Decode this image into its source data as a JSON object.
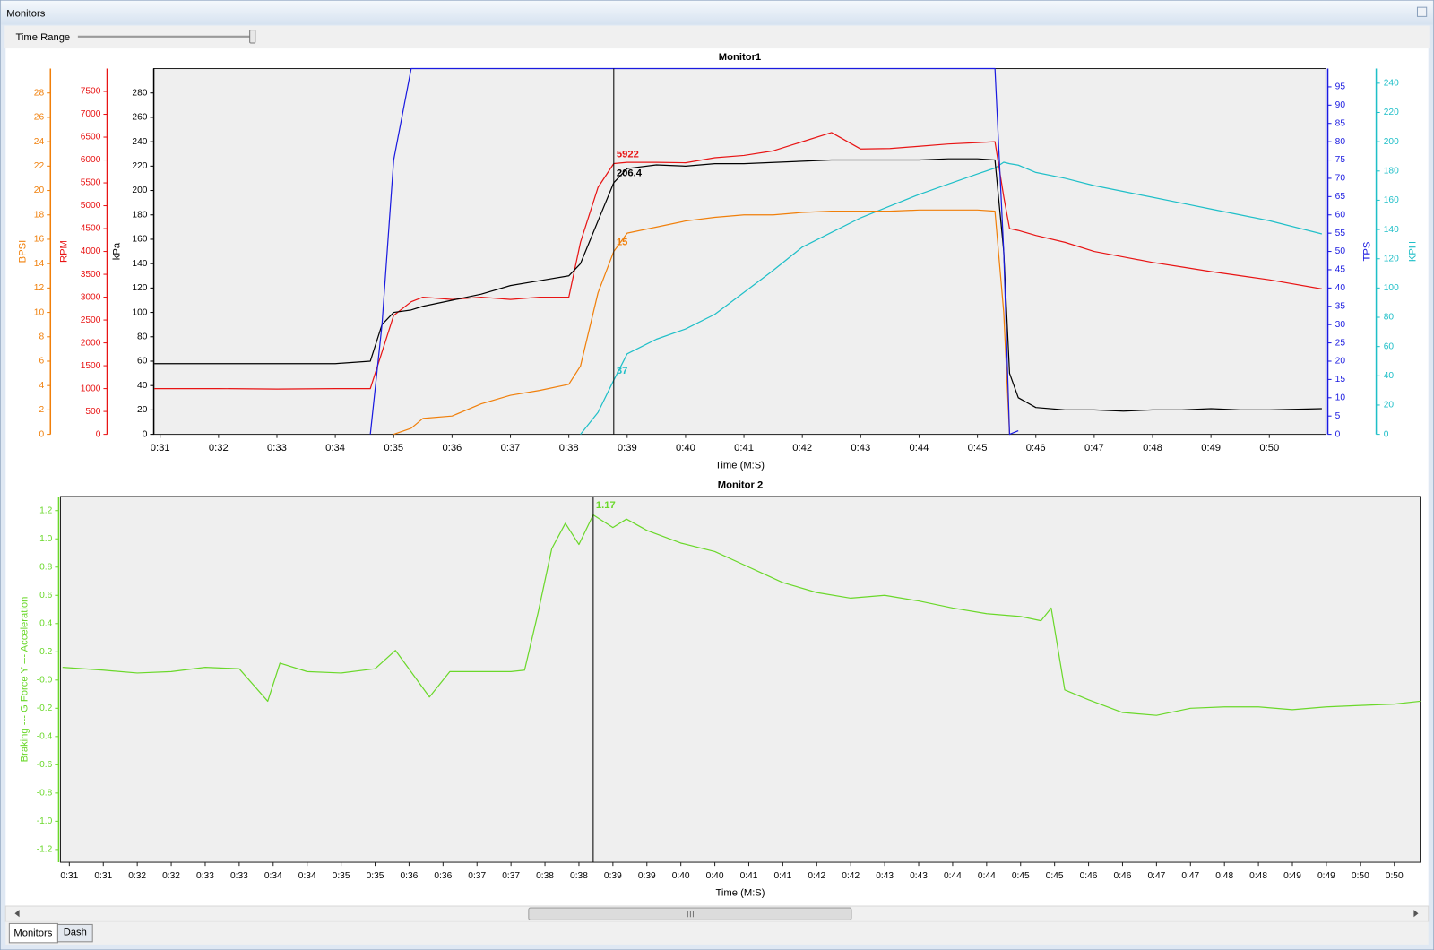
{
  "window": {
    "title": "Monitors"
  },
  "toolbar": {
    "time_range_label": "Time Range"
  },
  "tabs": [
    "Monitors",
    "Dash"
  ],
  "chart_data": [
    {
      "type": "line",
      "title": "Monitor1",
      "x_label": "Time (M:S)",
      "xlim": [
        30.89,
        50.97
      ],
      "xticks": [
        {
          "value": 31,
          "label": "0:31"
        },
        {
          "value": 32,
          "label": "0:32"
        },
        {
          "value": 33,
          "label": "0:33"
        },
        {
          "value": 34,
          "label": "0:34"
        },
        {
          "value": 35,
          "label": "0:35"
        },
        {
          "value": 36,
          "label": "0:36"
        },
        {
          "value": 37,
          "label": "0:37"
        },
        {
          "value": 38,
          "label": "0:38"
        },
        {
          "value": 39,
          "label": "0:39"
        },
        {
          "value": 40,
          "label": "0:40"
        },
        {
          "value": 41,
          "label": "0:41"
        },
        {
          "value": 42,
          "label": "0:42"
        },
        {
          "value": 43,
          "label": "0:43"
        },
        {
          "value": 44,
          "label": "0:44"
        },
        {
          "value": 45,
          "label": "0:45"
        },
        {
          "value": 46,
          "label": "0:46"
        },
        {
          "value": 47,
          "label": "0:47"
        },
        {
          "value": 48,
          "label": "0:48"
        },
        {
          "value": 49,
          "label": "0:49"
        },
        {
          "value": 50,
          "label": "0:50"
        }
      ],
      "grid": false,
      "cursor": 38.77,
      "axes": [
        {
          "label": "BPSI",
          "side": "left",
          "color": "#f07f0a",
          "lim": [
            0,
            30
          ],
          "ticks": [
            0,
            2,
            4,
            6,
            8,
            10,
            12,
            14,
            16,
            18,
            20,
            22,
            24,
            26,
            28
          ]
        },
        {
          "label": "RPM",
          "side": "left",
          "color": "#e81414",
          "lim": [
            0,
            8000
          ],
          "ticks": [
            0,
            500,
            1000,
            1500,
            2000,
            2500,
            3000,
            3500,
            4000,
            4500,
            5000,
            5500,
            6000,
            6500,
            7000,
            7500
          ]
        },
        {
          "label": "kPa",
          "side": "left",
          "color": "#000000",
          "lim": [
            0,
            300
          ],
          "ticks": [
            0,
            20,
            40,
            60,
            80,
            100,
            120,
            140,
            160,
            180,
            200,
            220,
            240,
            260,
            280
          ]
        },
        {
          "label": "TPS",
          "side": "right",
          "color": "#1a1ae0",
          "lim": [
            0,
            100
          ],
          "ticks": [
            0,
            5,
            10,
            15,
            20,
            25,
            30,
            35,
            40,
            45,
            50,
            55,
            60,
            65,
            70,
            75,
            80,
            85,
            90,
            95
          ]
        },
        {
          "label": "KPH",
          "side": "right",
          "color": "#1fbfc8",
          "lim": [
            0,
            250
          ],
          "ticks": [
            0,
            20,
            40,
            60,
            80,
            100,
            120,
            140,
            160,
            180,
            200,
            220,
            240
          ]
        }
      ],
      "x": [
        30.9,
        32,
        33,
        34,
        34.6,
        34.8,
        35,
        35.3,
        35.5,
        36,
        36.5,
        37,
        37.5,
        38,
        38.2,
        38.5,
        38.77,
        39,
        39.5,
        40,
        40.5,
        41,
        41.5,
        42,
        42.5,
        43,
        43.5,
        44,
        44.5,
        45,
        45.3,
        45.45,
        45.55,
        45.7,
        46,
        46.5,
        47,
        47.5,
        48,
        48.5,
        49,
        49.5,
        50,
        50.9
      ],
      "series": [
        {
          "axis": 4,
          "readout": true,
          "values": [
            null,
            null,
            null,
            null,
            null,
            null,
            null,
            null,
            null,
            null,
            null,
            null,
            null,
            null,
            0,
            15,
            37,
            55,
            65,
            72,
            82,
            97,
            112,
            128,
            138,
            148,
            156,
            164,
            171,
            178,
            182,
            186,
            185,
            184,
            179,
            175,
            170,
            166,
            162,
            158,
            154,
            150,
            146,
            137
          ]
        },
        {
          "axis": 0,
          "readout": true,
          "values": [
            null,
            null,
            null,
            null,
            null,
            null,
            0,
            0.5,
            1.3,
            1.5,
            2.5,
            3.2,
            3.6,
            4.1,
            5.6,
            11.6,
            15,
            16.5,
            17,
            17.5,
            17.8,
            18,
            18,
            18.2,
            18.3,
            18.3,
            18.3,
            18.4,
            18.4,
            18.4,
            18.3,
            10,
            0,
            null,
            null,
            null,
            null,
            null,
            null,
            null,
            null,
            null,
            null,
            null
          ]
        },
        {
          "axis": 1,
          "readout": true,
          "values": [
            1000,
            1000,
            990,
            1000,
            1000,
            1800,
            2600,
            2900,
            3000,
            2950,
            3000,
            2950,
            3000,
            3000,
            4200,
            5400,
            5922,
            5950,
            5950,
            5940,
            6050,
            6100,
            6200,
            6400,
            6600,
            6240,
            6250,
            6300,
            6350,
            6380,
            6400,
            5200,
            4500,
            4460,
            4350,
            4200,
            4000,
            3880,
            3760,
            3660,
            3560,
            3470,
            3380,
            3180
          ]
        },
        {
          "axis": 2,
          "readout": true,
          "values": [
            58,
            58,
            58,
            58,
            60,
            90,
            100,
            102,
            105,
            110,
            115,
            122,
            126,
            130,
            140,
            175,
            206.4,
            218,
            221,
            220,
            222,
            222,
            223,
            224,
            225,
            225,
            225,
            225,
            226,
            226,
            225,
            150,
            50,
            30,
            22,
            20,
            20,
            19,
            20,
            20,
            21,
            20,
            20,
            21
          ]
        },
        {
          "axis": 3,
          "readout": false,
          "values": [
            null,
            null,
            null,
            null,
            0,
            30,
            75,
            100,
            100,
            100,
            100,
            100,
            100,
            100,
            100,
            100,
            100,
            100,
            100,
            100,
            100,
            100,
            100,
            100,
            100,
            100,
            100,
            100,
            100,
            100,
            100,
            50,
            0,
            1,
            null,
            null,
            null,
            null,
            null,
            null,
            null,
            null,
            null,
            null
          ]
        }
      ]
    },
    {
      "type": "line",
      "title": "Monitor 2",
      "x_label": "Time (M:S)",
      "xlim": [
        30.87,
        50.88
      ],
      "xticks": [
        {
          "value": 31,
          "label": "0:31"
        },
        {
          "value": 31.5,
          "label": "0:31"
        },
        {
          "value": 32,
          "label": "0:32"
        },
        {
          "value": 32.5,
          "label": "0:32"
        },
        {
          "value": 33,
          "label": "0:33"
        },
        {
          "value": 33.5,
          "label": "0:33"
        },
        {
          "value": 34,
          "label": "0:34"
        },
        {
          "value": 34.5,
          "label": "0:34"
        },
        {
          "value": 35,
          "label": "0:35"
        },
        {
          "value": 35.5,
          "label": "0:35"
        },
        {
          "value": 36,
          "label": "0:36"
        },
        {
          "value": 36.5,
          "label": "0:36"
        },
        {
          "value": 37,
          "label": "0:37"
        },
        {
          "value": 37.5,
          "label": "0:37"
        },
        {
          "value": 38,
          "label": "0:38"
        },
        {
          "value": 38.5,
          "label": "0:38"
        },
        {
          "value": 39,
          "label": "0:39"
        },
        {
          "value": 39.5,
          "label": "0:39"
        },
        {
          "value": 40,
          "label": "0:40"
        },
        {
          "value": 40.5,
          "label": "0:40"
        },
        {
          "value": 41,
          "label": "0:41"
        },
        {
          "value": 41.5,
          "label": "0:41"
        },
        {
          "value": 42,
          "label": "0:42"
        },
        {
          "value": 42.5,
          "label": "0:42"
        },
        {
          "value": 43,
          "label": "0:43"
        },
        {
          "value": 43.5,
          "label": "0:43"
        },
        {
          "value": 44,
          "label": "0:44"
        },
        {
          "value": 44.5,
          "label": "0:44"
        },
        {
          "value": 45,
          "label": "0:45"
        },
        {
          "value": 45.5,
          "label": "0:45"
        },
        {
          "value": 46,
          "label": "0:46"
        },
        {
          "value": 46.5,
          "label": "0:46"
        },
        {
          "value": 47,
          "label": "0:47"
        },
        {
          "value": 47.5,
          "label": "0:47"
        },
        {
          "value": 48,
          "label": "0:48"
        },
        {
          "value": 48.5,
          "label": "0:48"
        },
        {
          "value": 49,
          "label": "0:49"
        },
        {
          "value": 49.5,
          "label": "0:49"
        },
        {
          "value": 50,
          "label": "0:50"
        },
        {
          "value": 50.5,
          "label": "0:50"
        }
      ],
      "grid": false,
      "cursor": 38.71,
      "axes": [
        {
          "label": "Braking --- G Force Y --- Acceleration",
          "side": "left",
          "color": "#6ad82a",
          "lim": [
            -1.29,
            1.3
          ],
          "ticks": [
            1.2,
            {
              "value": 1,
              "label": "1.0"
            },
            0.8,
            0.6,
            0.4,
            0.2,
            {
              "value": 0,
              "label": "-0.0"
            },
            -0.2,
            -0.4,
            -0.6,
            -0.8,
            {
              "value": -1,
              "label": "-1.0"
            },
            -1.2
          ]
        }
      ],
      "x": [
        30.9,
        31.5,
        32,
        32.5,
        33,
        33.5,
        33.92,
        34.1,
        34.5,
        35,
        35.5,
        35.8,
        36.3,
        36.6,
        37,
        37.5,
        37.7,
        37.9,
        38.1,
        38.3,
        38.5,
        38.71,
        39,
        39.2,
        39.5,
        40,
        40.5,
        41,
        41.5,
        42,
        42.5,
        43,
        43.5,
        44,
        44.5,
        45,
        45.3,
        45.45,
        45.65,
        46,
        46.5,
        47,
        47.5,
        48,
        48.5,
        49,
        49.5,
        50,
        50.5,
        50.88
      ],
      "series": [
        {
          "axis": 0,
          "readout": true,
          "values": [
            0.09,
            0.07,
            0.05,
            0.06,
            0.09,
            0.08,
            -0.15,
            0.12,
            0.06,
            0.05,
            0.08,
            0.21,
            -0.12,
            0.06,
            0.06,
            0.06,
            0.07,
            0.48,
            0.93,
            1.11,
            0.96,
            1.17,
            1.08,
            1.14,
            1.06,
            0.97,
            0.91,
            0.8,
            0.69,
            0.62,
            0.58,
            0.6,
            0.56,
            0.51,
            0.47,
            0.45,
            0.42,
            0.51,
            -0.07,
            -0.14,
            -0.23,
            -0.25,
            -0.2,
            -0.19,
            -0.19,
            -0.21,
            -0.19,
            -0.18,
            -0.17,
            -0.15
          ]
        }
      ]
    }
  ]
}
